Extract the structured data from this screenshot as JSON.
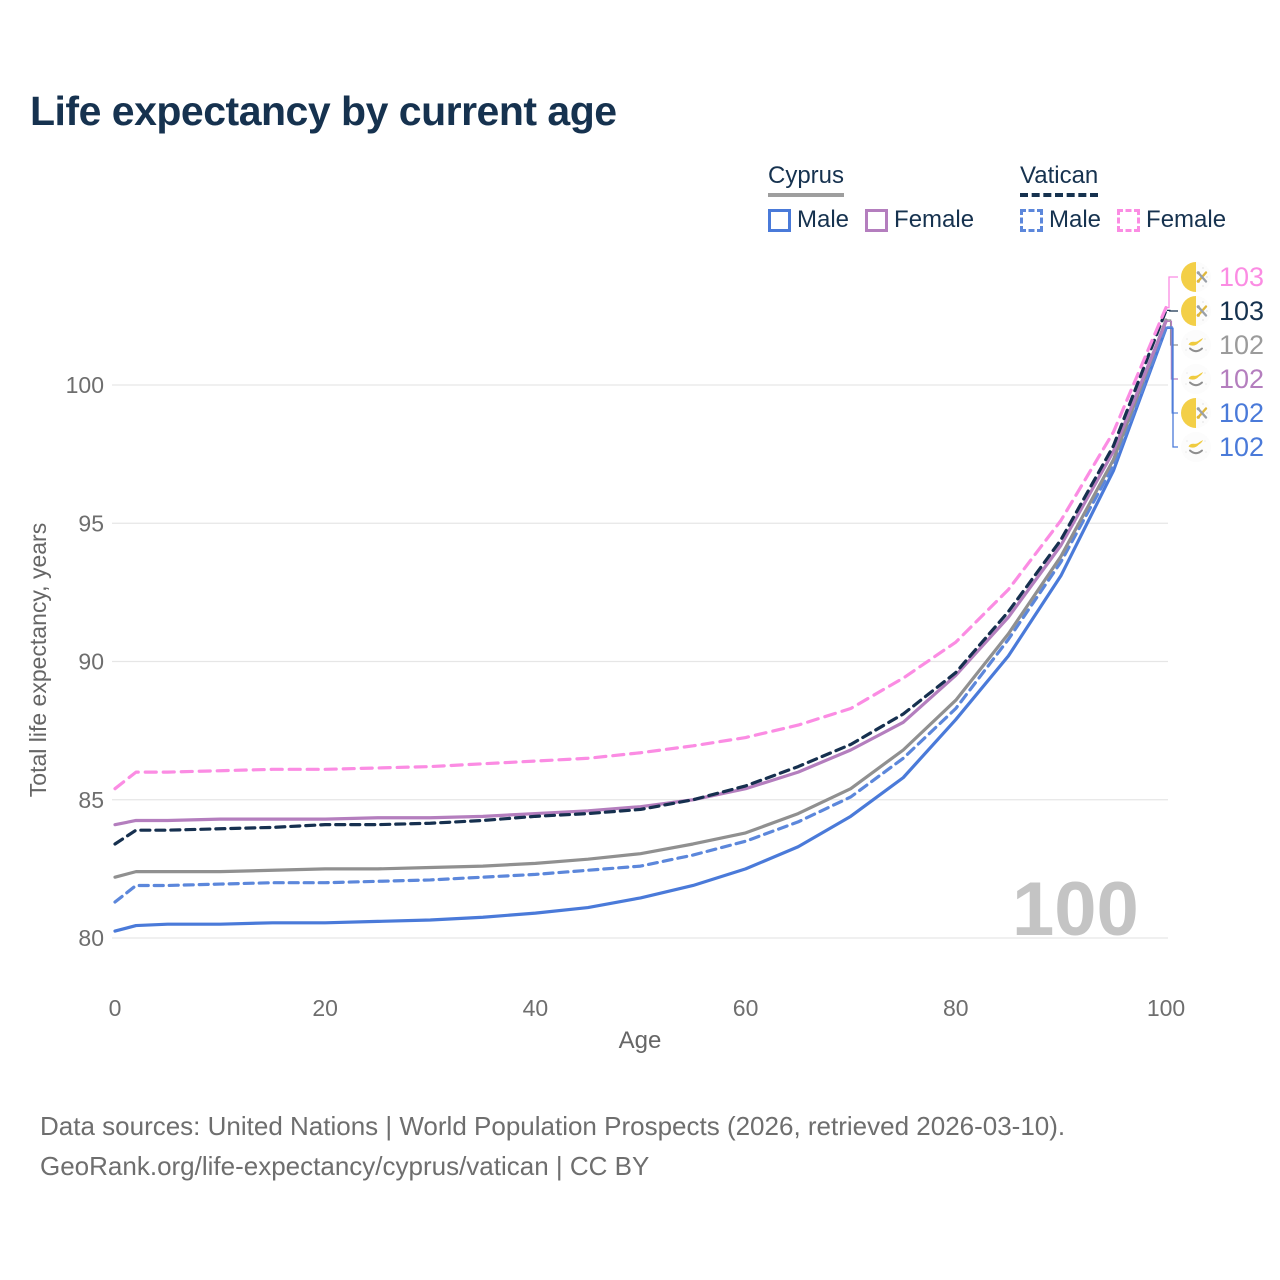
{
  "title": "Life expectancy by current age",
  "legend": {
    "cyprus": {
      "title": "Cyprus",
      "male_label": "Male",
      "female_label": "Female"
    },
    "vatican": {
      "title": "Vatican",
      "male_label": "Male",
      "female_label": "Female"
    }
  },
  "watermark": "100",
  "footer": {
    "line1": "Data sources: United Nations | World Population Prospects (2026, retrieved 2026-03-10).",
    "line2": "GeoRank.org/life-expectancy/cyprus/vatican | CC BY"
  },
  "colors": {
    "title_text": "#16324F",
    "cyprus_male": "#4A7AD9",
    "cyprus_female": "#B47EBE",
    "cyprus_total": "#909090",
    "vatican_male": "#5C87DB",
    "vatican_female": "#FB8CE3",
    "vatican_total": "#16304F",
    "grid": "#E6E6E6",
    "tick_text": "#6E6E6E",
    "watermark": "#C4C4C4",
    "end_label_gray": "#9B9B9B"
  },
  "chart_data": {
    "type": "line",
    "title": "Life expectancy by current age",
    "xlabel": "Age",
    "ylabel": "Total life expectancy, years",
    "x_ticks": [
      0,
      20,
      40,
      60,
      80,
      100
    ],
    "y_ticks": [
      80,
      85,
      90,
      95,
      100
    ],
    "xlim": [
      0,
      100
    ],
    "ylim": [
      79.5,
      103.5
    ],
    "grid": "horizontal-only",
    "legend_position": "top-right",
    "ages": [
      0,
      2,
      5,
      10,
      15,
      20,
      25,
      30,
      35,
      40,
      45,
      50,
      55,
      60,
      65,
      70,
      75,
      80,
      85,
      90,
      95,
      100
    ],
    "series": [
      {
        "id": "cyprus_male",
        "name": "Cyprus Male",
        "country": "Cyprus",
        "sex": "Male",
        "style": "solid",
        "color": "#4A7AD9",
        "values": [
          80.25,
          80.45,
          80.5,
          80.5,
          80.55,
          80.55,
          80.6,
          80.65,
          80.75,
          80.9,
          81.1,
          81.45,
          81.9,
          82.5,
          83.3,
          84.4,
          85.8,
          87.9,
          90.2,
          93.1,
          96.9,
          102.05
        ]
      },
      {
        "id": "vatican_male",
        "name": "Vatican Male",
        "country": "Vatican",
        "sex": "Male",
        "style": "dashed",
        "color": "#5C87DB",
        "values": [
          81.3,
          81.9,
          81.9,
          81.95,
          82.0,
          82.0,
          82.05,
          82.1,
          82.2,
          82.3,
          82.45,
          82.6,
          83.0,
          83.5,
          84.2,
          85.1,
          86.5,
          88.3,
          90.8,
          93.6,
          97.1,
          102.1
        ]
      },
      {
        "id": "cyprus_total",
        "name": "Cyprus Total",
        "country": "Cyprus",
        "sex": "Total",
        "style": "solid",
        "color": "#909090",
        "values": [
          82.2,
          82.4,
          82.4,
          82.4,
          82.45,
          82.5,
          82.5,
          82.55,
          82.6,
          82.7,
          82.85,
          83.05,
          83.4,
          83.8,
          84.5,
          85.4,
          86.8,
          88.6,
          91.0,
          93.8,
          97.3,
          102.35
        ]
      },
      {
        "id": "cyprus_female",
        "name": "Cyprus Female",
        "country": "Cyprus",
        "sex": "Female",
        "style": "solid",
        "color": "#B47EBE",
        "values": [
          84.1,
          84.25,
          84.25,
          84.3,
          84.3,
          84.3,
          84.35,
          84.35,
          84.4,
          84.5,
          84.6,
          84.75,
          85.0,
          85.4,
          86.0,
          86.8,
          87.8,
          89.5,
          91.6,
          94.2,
          97.6,
          102.3
        ]
      },
      {
        "id": "vatican_total",
        "name": "Vatican Total",
        "country": "Vatican",
        "sex": "Total",
        "style": "dashed",
        "color": "#16304F",
        "values": [
          83.4,
          83.9,
          83.9,
          83.95,
          84.0,
          84.1,
          84.1,
          84.15,
          84.25,
          84.4,
          84.5,
          84.65,
          85.0,
          85.5,
          86.2,
          87.0,
          88.1,
          89.6,
          91.8,
          94.4,
          97.8,
          102.7
        ]
      },
      {
        "id": "vatican_female",
        "name": "Vatican Female",
        "country": "Vatican",
        "sex": "Female",
        "style": "dashed",
        "color": "#FB8CE3",
        "values": [
          85.4,
          86.0,
          86.0,
          86.05,
          86.1,
          86.1,
          86.15,
          86.2,
          86.3,
          86.4,
          86.5,
          86.7,
          86.95,
          87.25,
          87.7,
          88.3,
          89.4,
          90.7,
          92.6,
          95.1,
          98.3,
          102.8
        ]
      }
    ],
    "end_labels": [
      {
        "series": "vatican_female",
        "text": "103",
        "color": "#FB8CE3",
        "icon": "vatican-flag-icon"
      },
      {
        "series": "vatican_total",
        "text": "103",
        "color": "#16324F",
        "icon": "vatican-flag-icon"
      },
      {
        "series": "cyprus_total",
        "text": "102",
        "color": "#9B9B9B",
        "icon": "cyprus-flag-icon"
      },
      {
        "series": "cyprus_female",
        "text": "102",
        "color": "#B47EBE",
        "icon": "cyprus-flag-icon"
      },
      {
        "series": "vatican_male",
        "text": "102",
        "color": "#4A7AD9",
        "icon": "vatican-flag-icon"
      },
      {
        "series": "cyprus_male",
        "text": "102",
        "color": "#4A7AD9",
        "icon": "cyprus-flag-icon"
      }
    ]
  }
}
